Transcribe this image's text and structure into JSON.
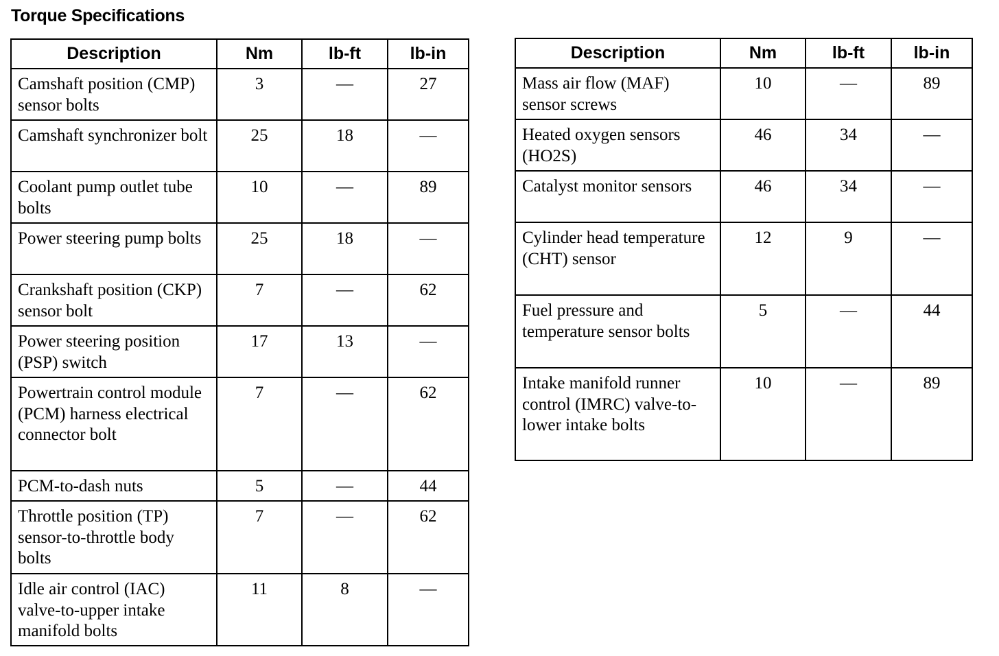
{
  "title": "Torque Specifications",
  "headers": [
    "Description",
    "Nm",
    "lb-ft",
    "lb-in"
  ],
  "left_table": [
    {
      "desc": "Camshaft position (CMP) sensor bolts",
      "nm": "3",
      "lbft": "—",
      "lbin": "27"
    },
    {
      "desc": "Camshaft synchronizer bolt",
      "nm": "25",
      "lbft": "18",
      "lbin": "—"
    },
    {
      "desc": "Coolant pump outlet tube bolts",
      "nm": "10",
      "lbft": "—",
      "lbin": "89"
    },
    {
      "desc": "Power steering pump bolts",
      "nm": "25",
      "lbft": "18",
      "lbin": "—"
    },
    {
      "desc": "Crankshaft position (CKP) sensor bolt",
      "nm": "7",
      "lbft": "—",
      "lbin": "62"
    },
    {
      "desc": "Power steering position (PSP) switch",
      "nm": "17",
      "lbft": "13",
      "lbin": "—"
    },
    {
      "desc": "Powertrain control module (PCM) harness electrical connector bolt",
      "nm": "7",
      "lbft": "—",
      "lbin": "62"
    },
    {
      "desc": "PCM-to-dash nuts",
      "nm": "5",
      "lbft": "—",
      "lbin": "44"
    },
    {
      "desc": "Throttle position (TP) sensor-to-throttle body bolts",
      "nm": "7",
      "lbft": "—",
      "lbin": "62"
    },
    {
      "desc": "Idle air control (IAC) valve-to-upper intake manifold bolts",
      "nm": "11",
      "lbft": "8",
      "lbin": "—"
    }
  ],
  "right_table": [
    {
      "desc": "Mass air flow (MAF) sensor screws",
      "nm": "10",
      "lbft": "—",
      "lbin": "89"
    },
    {
      "desc": "Heated oxygen sensors (HO2S)",
      "nm": "46",
      "lbft": "34",
      "lbin": "—"
    },
    {
      "desc": "Catalyst monitor sensors",
      "nm": "46",
      "lbft": "34",
      "lbin": "—"
    },
    {
      "desc": "Cylinder head temperature (CHT) sensor",
      "nm": "12",
      "lbft": "9",
      "lbin": "—"
    },
    {
      "desc": "Fuel pressure and temperature sensor bolts",
      "nm": "5",
      "lbft": "—",
      "lbin": "44"
    },
    {
      "desc": "Intake manifold runner control (IMRC) valve-to-lower intake bolts",
      "nm": "10",
      "lbft": "—",
      "lbin": "89"
    }
  ]
}
